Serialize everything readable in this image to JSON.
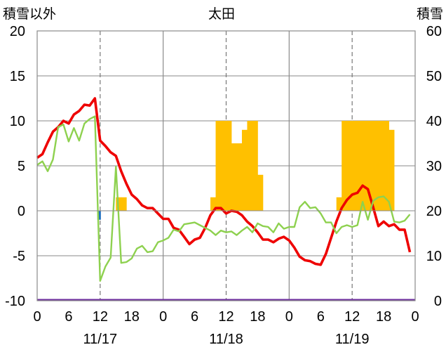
{
  "chart_data": {
    "type": "line",
    "title": "太田",
    "ylabel_left": "積雪以外",
    "ylabel_right": "積雪",
    "ylim_left": [
      -10,
      20
    ],
    "ylim_right": [
      0,
      60
    ],
    "yticks_left": [
      "20",
      "15",
      "10",
      "5",
      "0",
      "-5",
      "-10"
    ],
    "yticks_right": [
      "60",
      "50",
      "40",
      "30",
      "20",
      "10",
      "0"
    ],
    "xticks": [
      "0",
      "6",
      "12",
      "18",
      "0",
      "6",
      "12",
      "18",
      "0",
      "6",
      "12",
      "18",
      "0"
    ],
    "date_labels": [
      "11/17",
      "11/18",
      "11/19"
    ],
    "grid": "vertical dashed at 12:00, solid at 0:00",
    "colors": {
      "temperature": "#ee0000",
      "humidity": "#8ed14f",
      "snow": "#ffc000",
      "precip": "#1f6fbf",
      "baseline": "#7030a0"
    },
    "x_hours_start": 0,
    "snow_depth": [
      {
        "hour": 15.5,
        "value": 23
      },
      {
        "hour": 16.5,
        "value": 23
      },
      {
        "hour": 33.5,
        "value": 23
      },
      {
        "hour": 34.5,
        "value": 40
      },
      {
        "hour": 35.5,
        "value": 40
      },
      {
        "hour": 36.5,
        "value": 40
      },
      {
        "hour": 37.5,
        "value": 35
      },
      {
        "hour": 38.5,
        "value": 35
      },
      {
        "hour": 39.5,
        "value": 38
      },
      {
        "hour": 40.5,
        "value": 40
      },
      {
        "hour": 41.5,
        "value": 40
      },
      {
        "hour": 42.5,
        "value": 28
      },
      {
        "hour": 57.5,
        "value": 23
      },
      {
        "hour": 58.5,
        "value": 40
      },
      {
        "hour": 59.5,
        "value": 40
      },
      {
        "hour": 60.5,
        "value": 40
      },
      {
        "hour": 61.5,
        "value": 40
      },
      {
        "hour": 62.5,
        "value": 40
      },
      {
        "hour": 63.5,
        "value": 40
      },
      {
        "hour": 64.5,
        "value": 40
      },
      {
        "hour": 65.5,
        "value": 40
      },
      {
        "hour": 66.5,
        "value": 40
      },
      {
        "hour": 67.5,
        "value": 38
      }
    ],
    "precipitation": [
      {
        "hour": 11.8,
        "from": 0,
        "to": -1
      }
    ],
    "series": [
      {
        "key": "temperature",
        "x": [
          0,
          1,
          2,
          3,
          4,
          5,
          6,
          7,
          8,
          9,
          10,
          11,
          12,
          13,
          14,
          15,
          16,
          17,
          18,
          19,
          20,
          21,
          22,
          23,
          24,
          25,
          26,
          27,
          28,
          29,
          30,
          31,
          32,
          33,
          34,
          35,
          36,
          37,
          38,
          39,
          40,
          41,
          42,
          43,
          44,
          45,
          46,
          47,
          48,
          49,
          50,
          51,
          52,
          53,
          54,
          55,
          56,
          57,
          58,
          59,
          60,
          61,
          62,
          63,
          64,
          65,
          66,
          67,
          68,
          69,
          70,
          71
        ],
        "values": [
          5.9,
          6.3,
          7.6,
          8.8,
          9.3,
          10,
          9.7,
          10.7,
          11.1,
          11.8,
          11.7,
          12.5,
          7.8,
          7.2,
          6.5,
          6.1,
          4.4,
          3,
          1.8,
          1.3,
          0.6,
          0.3,
          0.3,
          -0.3,
          -0.9,
          -0.9,
          -1.9,
          -2.1,
          -2.9,
          -3.7,
          -3.2,
          -3,
          -1.9,
          -0.5,
          0.3,
          0.3,
          -0.3,
          0,
          -0.1,
          -0.5,
          -1.2,
          -1.7,
          -2.4,
          -3.2,
          -3.2,
          -3.5,
          -3.1,
          -2.9,
          -3.3,
          -4.1,
          -5.1,
          -5.5,
          -5.6,
          -5.9,
          -6,
          -4.8,
          -3,
          -1.2,
          0.3,
          1.2,
          1.8,
          2,
          2.8,
          2.4,
          0.4,
          -1.7,
          -1.2,
          -1.7,
          -1.5,
          -2.1,
          -2.1,
          -4.6
        ]
      },
      {
        "key": "humidity",
        "x": [
          0,
          1,
          2,
          3,
          4,
          5,
          6,
          7,
          8,
          9,
          10,
          11,
          12,
          13,
          14,
          15,
          16,
          17,
          18,
          19,
          20,
          21,
          22,
          23,
          24,
          25,
          26,
          27,
          28,
          29,
          30,
          31,
          32,
          33,
          34,
          35,
          36,
          37,
          38,
          39,
          40,
          41,
          42,
          43,
          44,
          45,
          46,
          47,
          48,
          49,
          50,
          51,
          52,
          53,
          54,
          55,
          56,
          57,
          58,
          59,
          60,
          61,
          62,
          63,
          64,
          65,
          66,
          67,
          68,
          69,
          70,
          71
        ],
        "values": [
          5.1,
          5.5,
          4.4,
          5.7,
          9.3,
          9.6,
          7.7,
          9.2,
          7.8,
          9.7,
          10.2,
          10.5,
          -7.8,
          -6.2,
          -5.2,
          4.9,
          -5.8,
          -5.7,
          -5.3,
          -4.2,
          -3.9,
          -4.6,
          -4.5,
          -3.5,
          -3.3,
          -3,
          -2.1,
          -2.3,
          -1.5,
          -1.4,
          -1.3,
          -1.6,
          -1.9,
          -2.2,
          -2.7,
          -2.2,
          -2.4,
          -2.3,
          -2.7,
          -2.2,
          -1.8,
          -2.4,
          -1.4,
          -1.7,
          -1.8,
          -2.4,
          -1.4,
          -2,
          -1.8,
          -1.8,
          0.4,
          1,
          0.3,
          0.4,
          -0.3,
          -1.3,
          -1.3,
          -2.5,
          -1.8,
          -1.6,
          -1.8,
          -1.6,
          1,
          -1,
          1.1,
          1.5,
          1.6,
          1,
          -1.2,
          -1.3,
          -1.1,
          -0.4
        ]
      }
    ]
  }
}
